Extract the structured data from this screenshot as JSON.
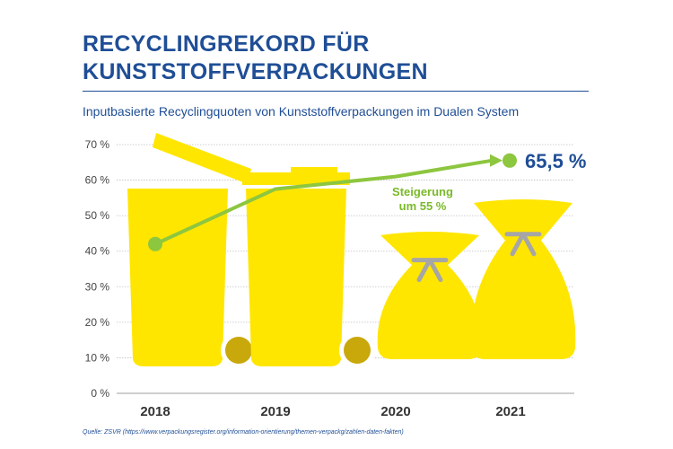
{
  "header": {
    "title_line1": "RECYCLINGREKORD FÜR",
    "title_line2": "KUNSTSTOFFVERPACKUNGEN",
    "subtitle": "Inputbasierte Recyclingquoten von Kunststoffverpackungen im Dualen System"
  },
  "colors": {
    "title": "#1f4e96",
    "line": "#8dc63f",
    "label_green": "#7ab929",
    "container_yellow": "#ffe600",
    "wheel": "#c9a80b",
    "knot": "#a6a6a6",
    "grid": "#bfbfbf"
  },
  "chart_data": {
    "type": "line",
    "title": "",
    "xlabel": "",
    "ylabel": "",
    "categories": [
      "2018",
      "2019",
      "2020",
      "2021"
    ],
    "x": [
      2018,
      2019,
      2020,
      2021
    ],
    "values": [
      42,
      57.5,
      61,
      65.5
    ],
    "ylim": [
      0,
      70
    ],
    "yticks": [
      0,
      10,
      20,
      30,
      40,
      50,
      60,
      70
    ],
    "ytick_labels": [
      "0 %",
      "10 %",
      "20 %",
      "30 %",
      "40 %",
      "50 %",
      "60 %",
      "70 %"
    ],
    "grid": true,
    "value_label": "65,5 %",
    "annotation_line1": "Steigerung",
    "annotation_line2": "um 55 %",
    "icons": [
      "yellow-bin-icon",
      "yellow-bin-icon",
      "yellow-bag-icon",
      "yellow-bag-icon"
    ]
  },
  "footer": {
    "source": "Quelle: ZSVR (https://www.verpackungsregister.org/information-orientierung/themen-verpackg/zahlen-daten-fakten)"
  }
}
